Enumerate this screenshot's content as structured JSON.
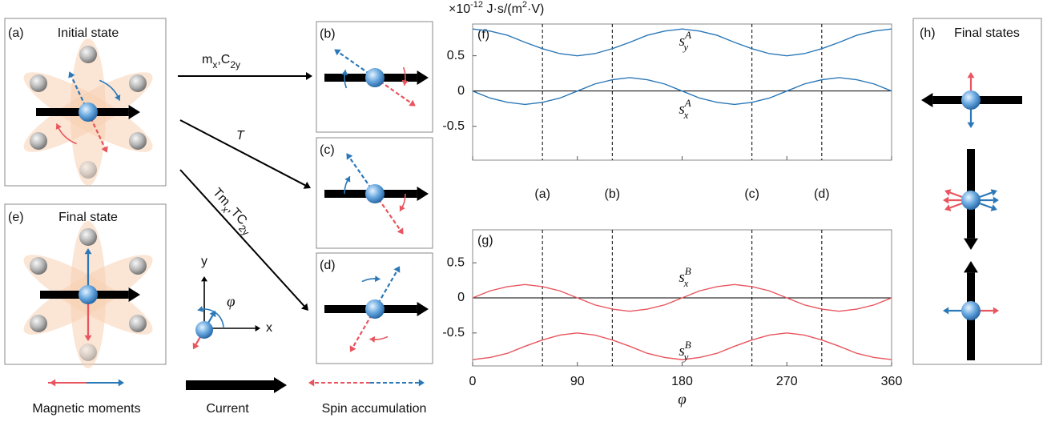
{
  "panels": {
    "a": {
      "label": "(a)",
      "title": "Initial state"
    },
    "b": {
      "label": "(b)"
    },
    "c": {
      "label": "(c)"
    },
    "d": {
      "label": "(d)"
    },
    "e": {
      "label": "(e)",
      "title": "Final state"
    },
    "h": {
      "label": "(h)",
      "title": "Final states"
    }
  },
  "operations": [
    {
      "parts": [
        {
          "text": "m"
        },
        {
          "text": "x",
          "sub": true
        },
        {
          "text": ",C"
        },
        {
          "text": "2y",
          "sub": true
        }
      ]
    },
    {
      "parts": [
        {
          "text": "T"
        }
      ]
    },
    {
      "parts": [
        {
          "text": "Tm"
        },
        {
          "text": "x",
          "sub": true
        },
        {
          "text": ",TC"
        },
        {
          "text": "2y",
          "sub": true
        }
      ]
    }
  ],
  "axes_inset": {
    "x": "x",
    "y": "y",
    "angle": "φ"
  },
  "legend": [
    "Magnetic moments",
    "Current",
    "Spin accumulation"
  ],
  "chart_data": [
    {
      "type": "line",
      "panel_label": "(f)",
      "unit_label": {
        "parts": [
          {
            "text": "×10"
          },
          {
            "text": "-12",
            "sup": true
          },
          {
            "text": " J·s/(m"
          },
          {
            "text": "2",
            "sup": true
          },
          {
            "text": "·V)"
          }
        ]
      },
      "x": [
        0,
        15,
        30,
        45,
        60,
        75,
        90,
        105,
        120,
        135,
        150,
        165,
        180,
        195,
        210,
        225,
        240,
        255,
        270,
        285,
        300,
        315,
        330,
        345,
        360
      ],
      "xlim": [
        0,
        360
      ],
      "xticks": [
        0,
        90,
        180,
        270,
        360
      ],
      "xtick_labels": false,
      "ylim": [
        -0.98,
        0.95
      ],
      "yticks": [
        0.5,
        0,
        -0.5
      ],
      "reference_x": [
        60,
        120,
        240,
        300
      ],
      "reference_labels": [
        "(a)",
        "(b)",
        "(c)",
        "(d)"
      ],
      "series": [
        {
          "name": "s",
          "subscript": "y",
          "superscript": "A",
          "color": "#2b78b8",
          "values": [
            0.88,
            0.85,
            0.79,
            0.69,
            0.6,
            0.53,
            0.5,
            0.53,
            0.6,
            0.69,
            0.79,
            0.85,
            0.88,
            0.85,
            0.79,
            0.69,
            0.6,
            0.53,
            0.5,
            0.53,
            0.6,
            0.69,
            0.79,
            0.85,
            0.88
          ]
        },
        {
          "name": "s",
          "subscript": "x",
          "superscript": "A",
          "color": "#2b78b8",
          "values": [
            0,
            -0.1,
            -0.16,
            -0.19,
            -0.16,
            -0.1,
            0,
            0.1,
            0.16,
            0.19,
            0.16,
            0.1,
            0,
            -0.1,
            -0.16,
            -0.19,
            -0.16,
            -0.1,
            0,
            0.1,
            0.16,
            0.19,
            0.16,
            0.1,
            0
          ]
        }
      ]
    },
    {
      "type": "line",
      "panel_label": "(g)",
      "x_label": "φ",
      "x": [
        0,
        15,
        30,
        45,
        60,
        75,
        90,
        105,
        120,
        135,
        150,
        165,
        180,
        195,
        210,
        225,
        240,
        255,
        270,
        285,
        300,
        315,
        330,
        345,
        360
      ],
      "xlim": [
        0,
        360
      ],
      "xticks": [
        0,
        90,
        180,
        270,
        360
      ],
      "xtick_labels": true,
      "ylim": [
        -0.97,
        0.97
      ],
      "yticks": [
        0.5,
        0,
        -0.5
      ],
      "reference_x": [
        60,
        120,
        240,
        300
      ],
      "series": [
        {
          "name": "s",
          "subscript": "x",
          "superscript": "B",
          "color": "#e8555e",
          "values": [
            0,
            0.1,
            0.16,
            0.19,
            0.16,
            0.1,
            0,
            -0.1,
            -0.16,
            -0.19,
            -0.16,
            -0.1,
            0,
            0.1,
            0.16,
            0.19,
            0.16,
            0.1,
            0,
            -0.1,
            -0.16,
            -0.19,
            -0.16,
            -0.1,
            0
          ]
        },
        {
          "name": "s",
          "subscript": "y",
          "superscript": "B",
          "color": "#e8555e",
          "values": [
            -0.88,
            -0.85,
            -0.79,
            -0.69,
            -0.6,
            -0.53,
            -0.5,
            -0.53,
            -0.6,
            -0.69,
            -0.79,
            -0.85,
            -0.88,
            -0.85,
            -0.79,
            -0.69,
            -0.6,
            -0.53,
            -0.5,
            -0.53,
            -0.6,
            -0.69,
            -0.79,
            -0.85,
            -0.88
          ]
        }
      ]
    }
  ]
}
